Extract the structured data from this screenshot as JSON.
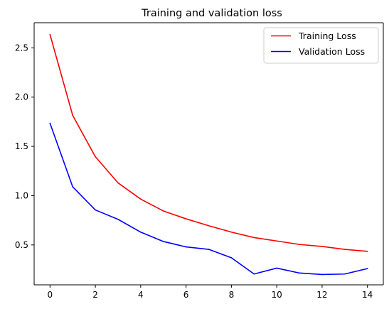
{
  "chart_data": {
    "type": "line",
    "title": "Training and validation loss",
    "xlabel": "",
    "ylabel": "",
    "x": [
      0,
      1,
      2,
      3,
      4,
      5,
      6,
      7,
      8,
      9,
      10,
      11,
      12,
      13,
      14
    ],
    "xlim": [
      -0.7,
      14.7
    ],
    "ylim": [
      0.095,
      2.755
    ],
    "xticks": [
      0,
      2,
      4,
      6,
      8,
      10,
      12,
      14
    ],
    "yticks": [
      0.5,
      1.0,
      1.5,
      2.0,
      2.5
    ],
    "xtick_labels": [
      "0",
      "2",
      "4",
      "6",
      "8",
      "10",
      "12",
      "14"
    ],
    "ytick_labels": [
      "0.5",
      "1.0",
      "1.5",
      "2.0",
      "2.5"
    ],
    "grid": false,
    "legend_position": "top-right",
    "series": [
      {
        "name": "Training Loss",
        "color": "#ff0000",
        "values": [
          2.635,
          1.815,
          1.395,
          1.13,
          0.965,
          0.845,
          0.765,
          0.695,
          0.63,
          0.575,
          0.54,
          0.505,
          0.485,
          0.455,
          0.435
        ]
      },
      {
        "name": "Validation Loss",
        "color": "#0000ff",
        "values": [
          1.735,
          1.09,
          0.855,
          0.76,
          0.63,
          0.535,
          0.48,
          0.455,
          0.37,
          0.205,
          0.265,
          0.215,
          0.2,
          0.205,
          0.26
        ]
      }
    ]
  }
}
